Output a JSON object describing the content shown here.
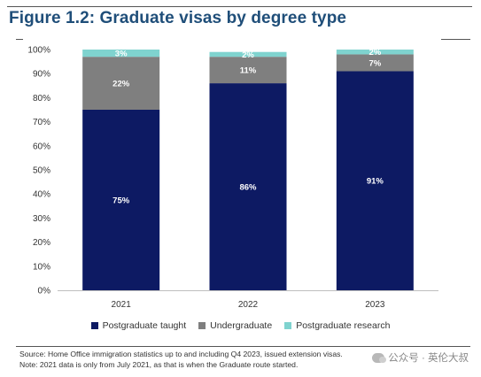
{
  "figure": {
    "title": "Figure 1.2: Graduate visas by degree type"
  },
  "chart_data": {
    "type": "bar",
    "stacked": true,
    "categories": [
      "2021",
      "2022",
      "2023"
    ],
    "series": [
      {
        "name": "Postgraduate taught",
        "values": [
          75,
          86,
          91
        ],
        "labels": [
          "75%",
          "86%",
          "91%"
        ],
        "color": "#0d1a63",
        "label_color": "#ffffff"
      },
      {
        "name": "Undergraduate",
        "values": [
          22,
          11,
          7
        ],
        "labels": [
          "22%",
          "11%",
          "7%"
        ],
        "color": "#7f7f7f",
        "label_color": "#ffffff"
      },
      {
        "name": "Postgraduate research",
        "values": [
          3,
          2,
          2
        ],
        "labels": [
          "3%",
          "2%",
          "2%"
        ],
        "color": "#7fd3cf",
        "label_color": "#ffffff"
      }
    ],
    "yticks": [
      "0%",
      "10%",
      "20%",
      "30%",
      "40%",
      "50%",
      "60%",
      "70%",
      "80%",
      "90%",
      "100%"
    ],
    "ylim": [
      0,
      100
    ],
    "grid": false,
    "legend": "bottom"
  },
  "notes": {
    "source": "Source: Home Office immigration statistics up to and including Q4 2023, issued extension visas.",
    "note": "Note: 2021 data is only from July 2021, as that is when the Graduate route started."
  },
  "watermark": {
    "text": "公众号 · 英伦大叔",
    "icon": "wechat-icon"
  }
}
